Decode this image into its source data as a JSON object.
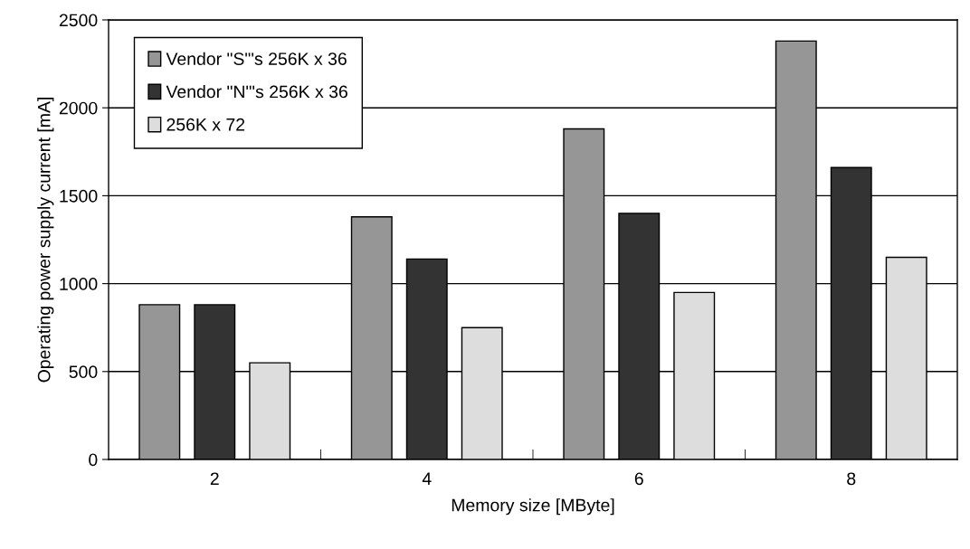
{
  "chart_data": {
    "type": "bar",
    "xlabel": "Memory size [MByte]",
    "ylabel": "Operating power supply current [mA]",
    "categories": [
      "2",
      "4",
      "6",
      "8"
    ],
    "series": [
      {
        "name": "Vendor \"S\"'s 256K x 36",
        "color": "#969696",
        "values": [
          880,
          1380,
          1880,
          2380
        ]
      },
      {
        "name": "Vendor \"N\"'s 256K x 36",
        "color": "#333333",
        "values": [
          880,
          1140,
          1400,
          1660
        ]
      },
      {
        "name": "256K x 72",
        "color": "#dddddd",
        "values": [
          550,
          750,
          950,
          1150
        ]
      }
    ],
    "ylim": [
      0,
      2500
    ],
    "yticks": [
      0,
      500,
      1000,
      1500,
      2000,
      2500
    ],
    "grid": "y",
    "legend": "top left"
  }
}
